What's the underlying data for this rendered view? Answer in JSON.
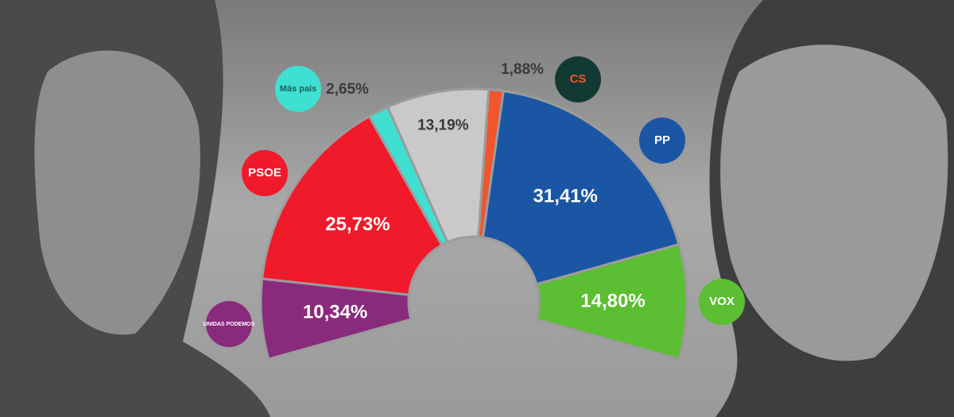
{
  "chart_data": {
    "type": "donut",
    "categories": [
      "UNIDAS PODEMOS",
      "PSOE",
      "Más país",
      null,
      "CS",
      "PP",
      "VOX"
    ],
    "values": [
      10.34,
      25.73,
      2.65,
      13.19,
      1.88,
      31.41,
      14.8
    ],
    "value_labels": [
      "10,34%",
      "25,73%",
      "2,65%",
      "13,19%",
      "1,88%",
      "31,41%",
      "14,80%"
    ],
    "colors": [
      "#8a2a7d",
      "#f01a2a",
      "#3fe0d2",
      "#c9c9c9",
      "#f0552c",
      "#1b56a5",
      "#5cbe32"
    ]
  }
}
